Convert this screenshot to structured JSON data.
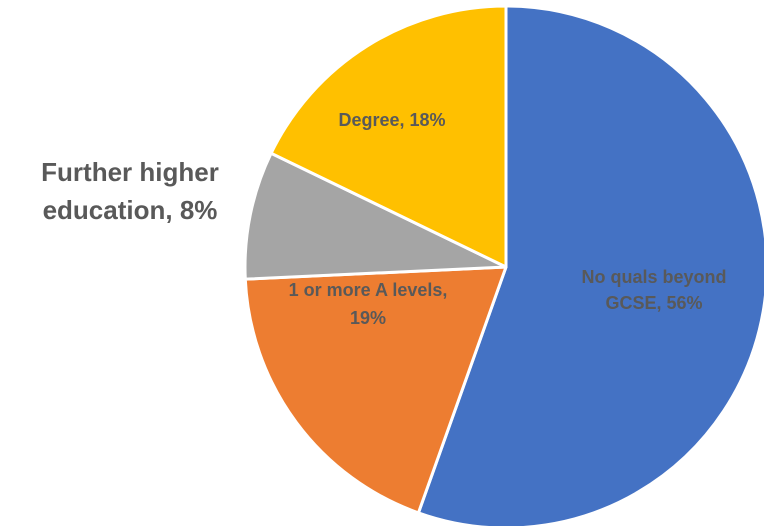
{
  "chart_data": {
    "type": "pie",
    "title": "",
    "slices": [
      {
        "label": "No quals beyond GCSE",
        "value": 56,
        "display": [
          "No quals beyond",
          "GCSE, 56%"
        ],
        "color": "#4472C4"
      },
      {
        "label": "1 or more A levels",
        "value": 19,
        "display": [
          "1 or more A levels,",
          "19%"
        ],
        "color": "#ED7D31"
      },
      {
        "label": "Further higher education",
        "value": 8,
        "display": [
          "Further higher",
          "education, 8%"
        ],
        "color": "#A5A5A5"
      },
      {
        "label": "Degree",
        "value": 18,
        "display": [
          "Degree, 18%"
        ],
        "color": "#FFC000"
      }
    ],
    "start": "12 o'clock",
    "direction": "clockwise"
  }
}
